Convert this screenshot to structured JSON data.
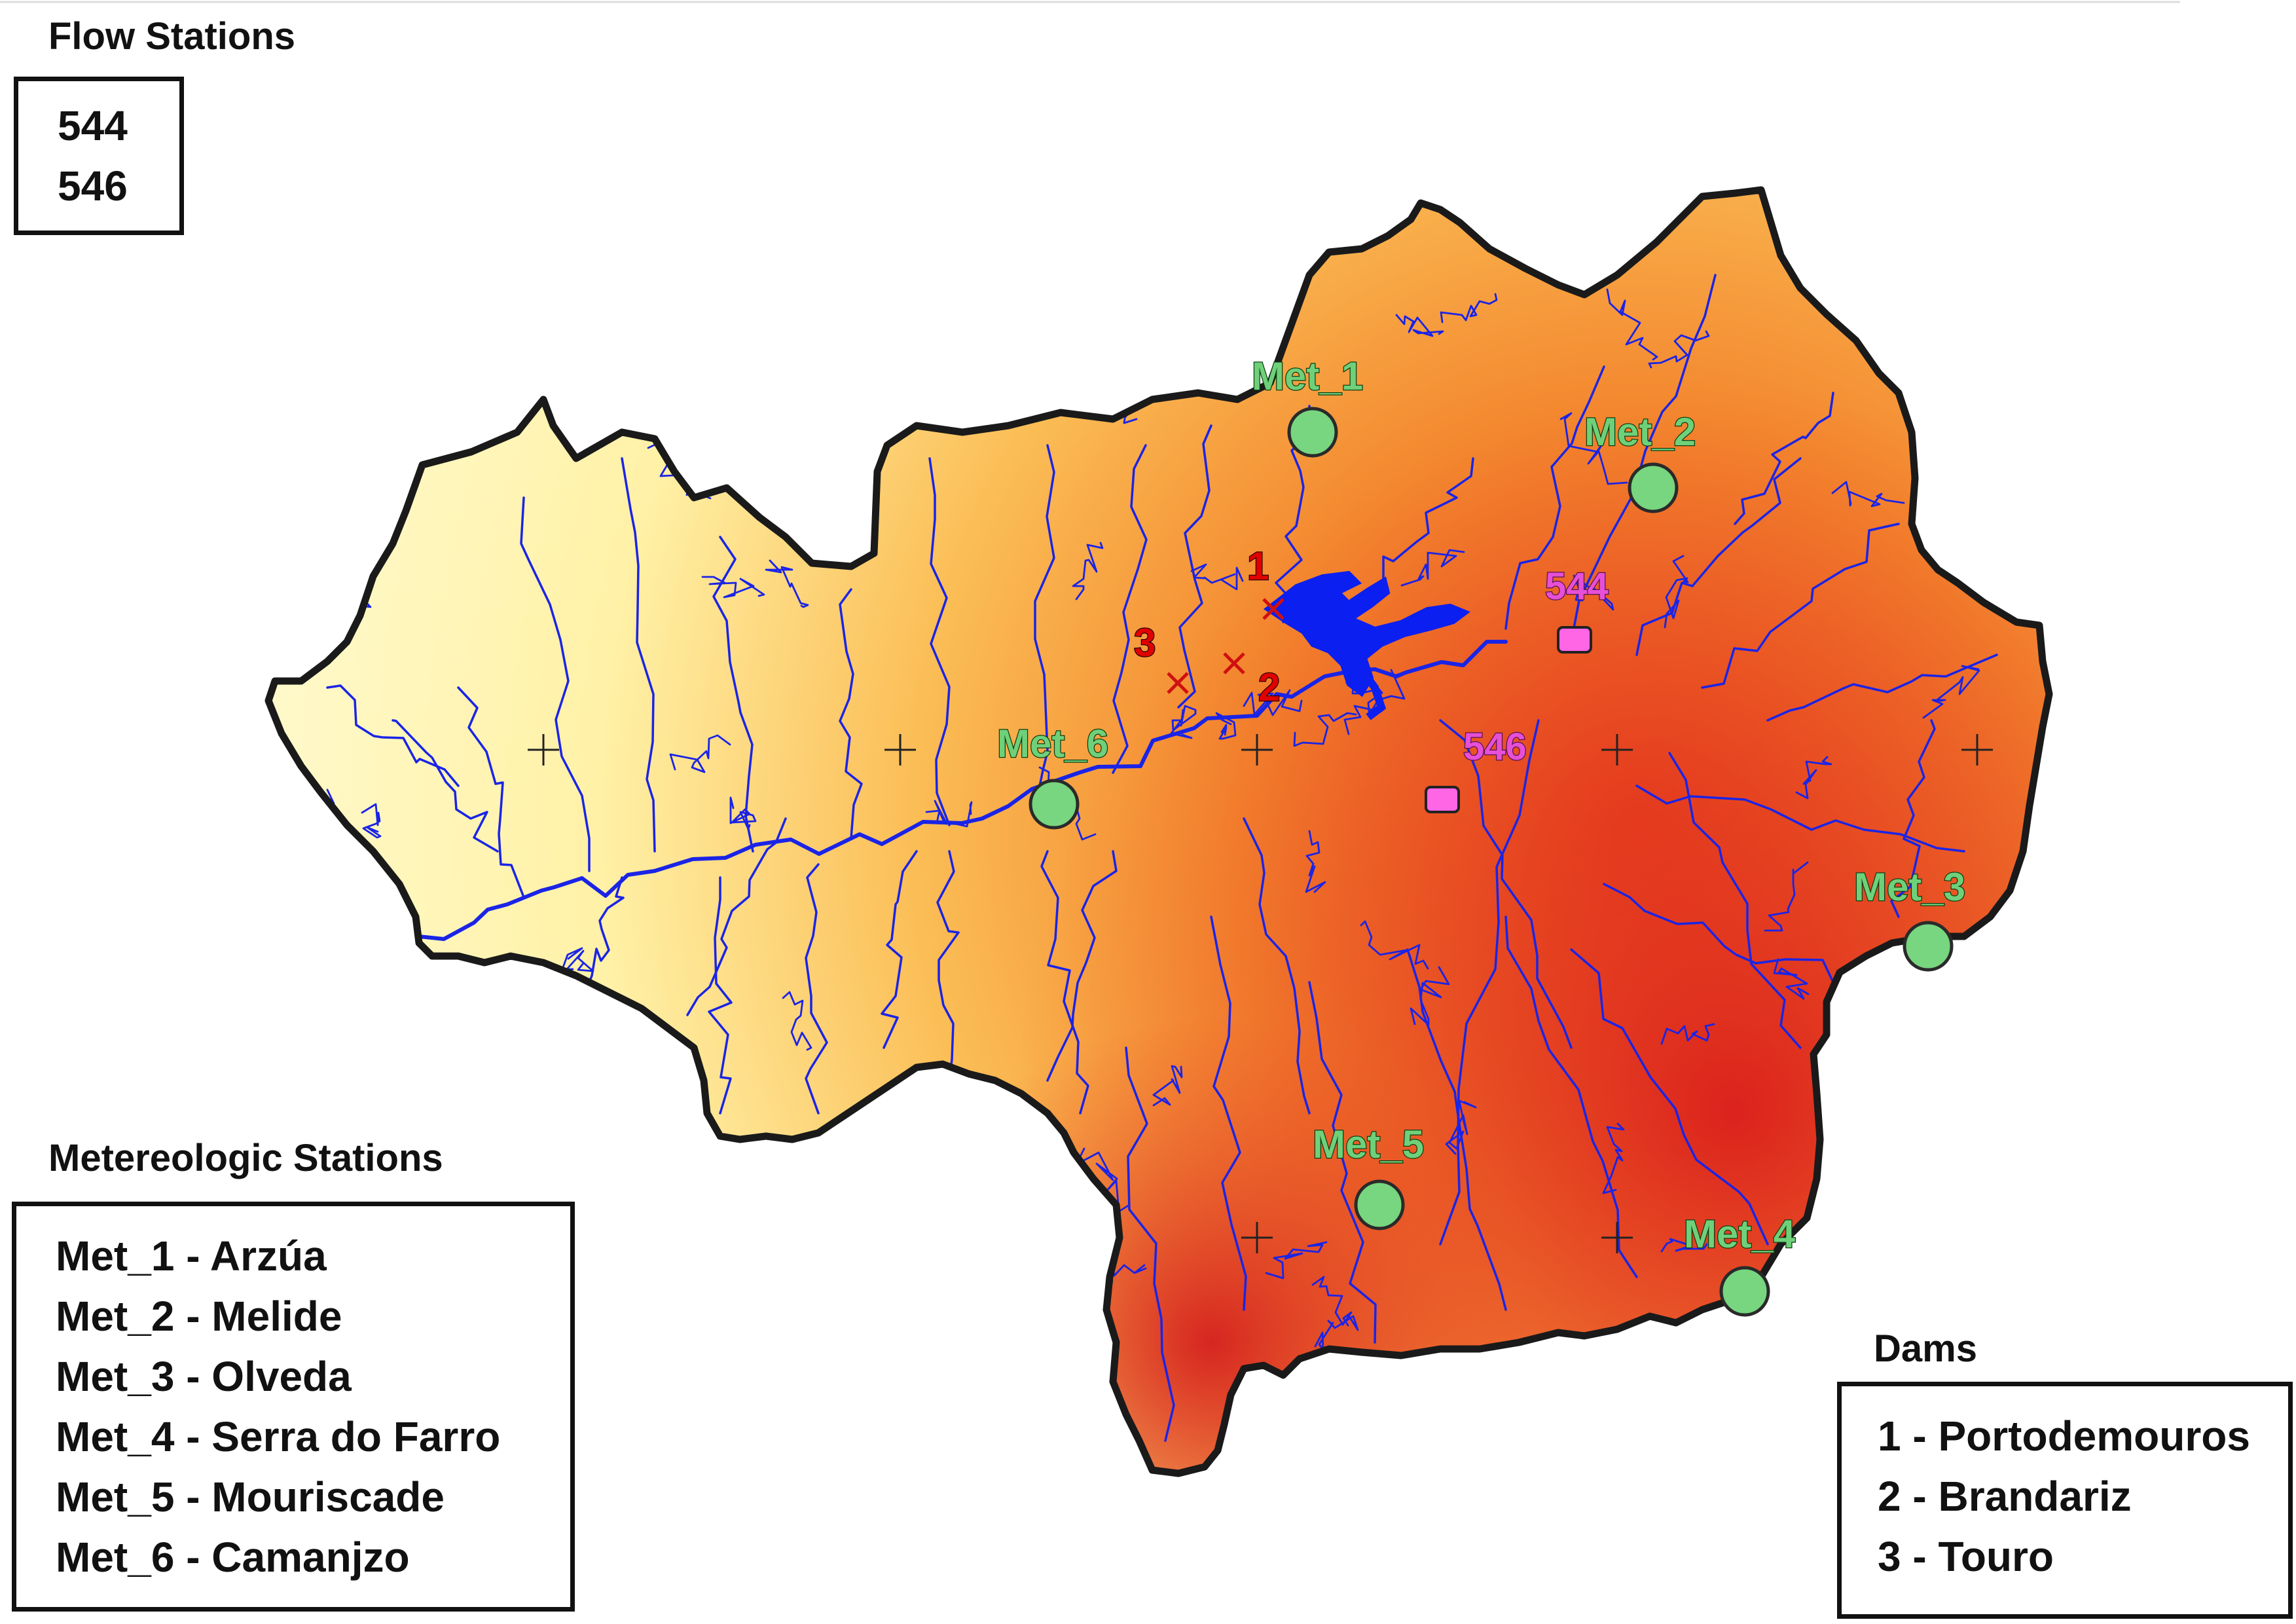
{
  "flow_legend": {
    "title": "Flow Stations",
    "items": [
      "544",
      "546"
    ]
  },
  "met_legend": {
    "title": "Metereologic Stations",
    "items": [
      "Met_1 - Arzúa",
      "Met_2 - Melide",
      "Met_3 - Olveda",
      "Met_4 - Serra do Farro",
      "Met_5 - Mouriscade",
      "Met_6 - Camanjzo"
    ]
  },
  "dams_legend": {
    "title": "Dams",
    "items": [
      "1 - Portodemouros",
      "2 - Brandariz",
      "3 - Touro"
    ]
  },
  "map": {
    "met_stations": [
      {
        "label": "Met_1"
      },
      {
        "label": "Met_2"
      },
      {
        "label": "Met_3"
      },
      {
        "label": "Met_4"
      },
      {
        "label": "Met_5"
      },
      {
        "label": "Met_6"
      }
    ],
    "flow_stations": [
      {
        "label": "544"
      },
      {
        "label": "546"
      }
    ],
    "dams": [
      {
        "label": "1"
      },
      {
        "label": "2"
      },
      {
        "label": "3"
      }
    ],
    "colors": {
      "met_marker": "#77d67f",
      "met_label": "#6fd07a",
      "flow_marker": "#ff66e6",
      "flow_label": "#e64fd6",
      "dam_label": "#e00000",
      "river": "#1a24e6",
      "reservoir": "#0a1ff0",
      "boundary": "#1a1a1a",
      "elevation_low": "#fff9c0",
      "elevation_mid": "#f7a24a",
      "elevation_high": "#d4101a"
    }
  }
}
